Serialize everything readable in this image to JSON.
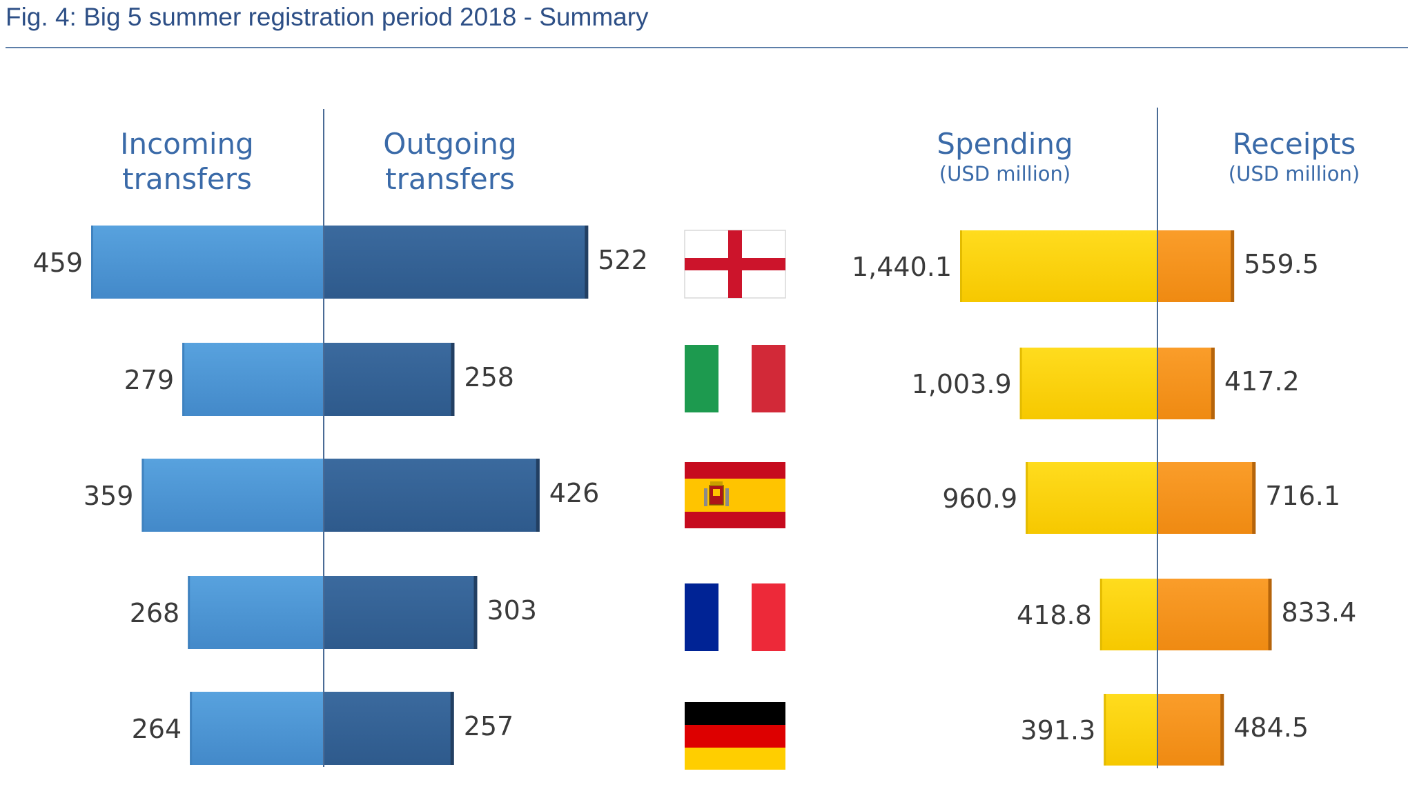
{
  "colors": {
    "title": "#2d4f86",
    "heading": "#3a6aa8",
    "value_text": "#3a3a3a",
    "incoming": "#4a94d4",
    "outgoing": "#336295",
    "spending": "#ffd300",
    "receipts": "#f7941d",
    "rule": "#5d7ea8"
  },
  "chart_data": [
    {
      "type": "bar",
      "title": "Fig. 4: Big 5 summer registration period 2018 - Summary",
      "orientation": "horizontal-diverging",
      "categories": [
        "England",
        "Italy",
        "Spain",
        "France",
        "Germany"
      ],
      "category_icons": [
        "flag-england",
        "flag-italy",
        "flag-spain",
        "flag-france",
        "flag-germany"
      ],
      "series": [
        {
          "name": "Incoming transfers",
          "direction": "left",
          "values": [
            459,
            279,
            359,
            268,
            264
          ],
          "labels": [
            "459",
            "279",
            "359",
            "268",
            "264"
          ]
        },
        {
          "name": "Outgoing transfers",
          "direction": "right",
          "values": [
            522,
            258,
            426,
            303,
            257
          ],
          "labels": [
            "522",
            "258",
            "426",
            "303",
            "257"
          ]
        }
      ],
      "grid": false,
      "legend": "column headers above bars"
    },
    {
      "type": "bar",
      "orientation": "horizontal-diverging",
      "categories": [
        "England",
        "Italy",
        "Spain",
        "France",
        "Germany"
      ],
      "series": [
        {
          "name": "Spending",
          "unit": "(USD million)",
          "direction": "left",
          "values": [
            1440.1,
            1003.9,
            960.9,
            418.8,
            391.3
          ],
          "labels": [
            "1,440.1",
            "1,003.9",
            "960.9",
            "418.8",
            "391.3"
          ]
        },
        {
          "name": "Receipts",
          "unit": "(USD million)",
          "direction": "right",
          "values": [
            559.5,
            417.2,
            716.1,
            833.4,
            484.5
          ],
          "labels": [
            "559.5",
            "417.2",
            "716.1",
            "833.4",
            "484.5"
          ]
        }
      ],
      "grid": false,
      "legend": "column headers above bars"
    }
  ],
  "headers": {
    "incoming": [
      "Incoming",
      "transfers"
    ],
    "outgoing": [
      "Outgoing",
      "transfers"
    ],
    "spending": "Spending",
    "spending_unit": "(USD million)",
    "receipts": "Receipts",
    "receipts_unit": "(USD million)"
  }
}
